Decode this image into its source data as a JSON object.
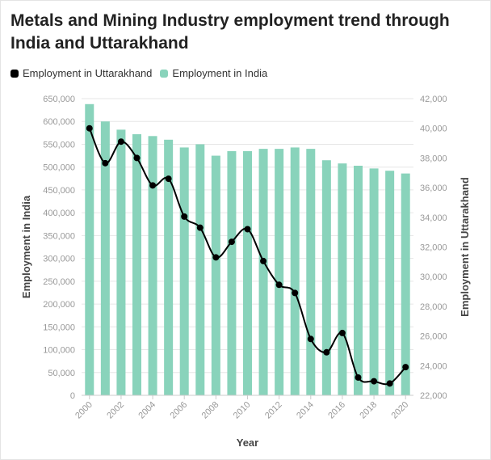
{
  "title": "Metals and Mining Industry employment trend through India and Uttarakhand",
  "legend": {
    "line_label": "Employment in Uttarakhand",
    "bar_label": "Employment in India"
  },
  "colors": {
    "bar": "#89d3bb",
    "line": "#000000",
    "grid": "#e6e6e6"
  },
  "chart_data": {
    "type": "bar",
    "title": "Metals and Mining Industry employment trend through India and Uttarakhand",
    "xlabel": "Year",
    "ylabel": "Employment in India",
    "y2label": "Employment in Uttarakhand",
    "ylim": [
      0,
      650000
    ],
    "y2lim": [
      22000,
      42000
    ],
    "y_ticks": [
      "0",
      "50,000",
      "100,000",
      "150,000",
      "200,000",
      "250,000",
      "300,000",
      "350,000",
      "400,000",
      "450,000",
      "500,000",
      "550,000",
      "600,000",
      "650,000"
    ],
    "y2_ticks": [
      "22,000",
      "24,000",
      "26,000",
      "28,000",
      "30,000",
      "32,000",
      "34,000",
      "36,000",
      "38,000",
      "40,000",
      "42,000"
    ],
    "x_tick_labels": [
      "2000",
      "2002",
      "2004",
      "2006",
      "2008",
      "2010",
      "2012",
      "2014",
      "2016",
      "2018",
      "2020"
    ],
    "grid": true,
    "legend_position": "top-left",
    "categories": [
      "2000",
      "2001",
      "2002",
      "2003",
      "2004",
      "2005",
      "2006",
      "2007",
      "2008",
      "2009",
      "2010",
      "2011",
      "2012",
      "2013",
      "2014",
      "2015",
      "2016",
      "2017",
      "2018",
      "2019",
      "2020"
    ],
    "series": [
      {
        "name": "Employment in India",
        "type": "bar",
        "axis": "left",
        "values": [
          638000,
          600000,
          582000,
          572000,
          568000,
          560000,
          543000,
          550000,
          525000,
          535000,
          535000,
          540000,
          540000,
          543000,
          540000,
          515000,
          508000,
          503000,
          497000,
          492000,
          486000
        ]
      },
      {
        "name": "Employment in Uttarakhand",
        "type": "line",
        "axis": "right",
        "values": [
          40000,
          37650,
          39100,
          38000,
          36150,
          36600,
          34050,
          33300,
          31300,
          32350,
          33200,
          31050,
          29450,
          28900,
          25800,
          24900,
          26200,
          23200,
          22950,
          22800,
          23900
        ]
      }
    ]
  }
}
